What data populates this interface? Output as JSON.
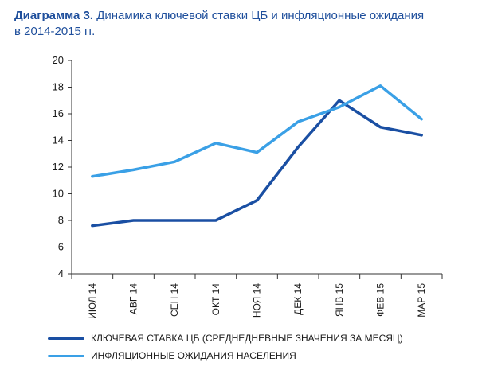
{
  "title": {
    "prefix": "Диаграмма 3.",
    "line1": " Динамика ключевой ставки ЦБ и инфляционные ожидания",
    "line2": "в 2014-2015 гг."
  },
  "chart_data": {
    "type": "line",
    "categories": [
      "ИЮЛ 14",
      "АВГ 14",
      "СЕН 14",
      "ОКТ 14",
      "НОЯ 14",
      "ДЕК 14",
      "ЯНВ 15",
      "ФЕВ 15",
      "МАР 15"
    ],
    "ylim": [
      4,
      20
    ],
    "yticks": [
      4,
      6,
      8,
      10,
      12,
      14,
      16,
      18,
      20
    ],
    "grid": false,
    "legend_position": "bottom",
    "series": [
      {
        "name": "КЛЮЧЕВАЯ СТАВКА ЦБ (СРЕДНЕДНЕВНЫЕ ЗНАЧЕНИЯ ЗА МЕСЯЦ)",
        "color": "#1a4fa3",
        "values": [
          7.6,
          8.0,
          8.0,
          8.0,
          9.5,
          13.5,
          17.0,
          15.0,
          14.4
        ]
      },
      {
        "name": "ИНФЛЯЦИОННЫЕ ОЖИДАНИЯ НАСЕЛЕНИЯ",
        "color": "#3aa0e6",
        "values": [
          11.3,
          11.8,
          12.4,
          13.8,
          13.1,
          15.4,
          16.5,
          18.1,
          15.6
        ]
      }
    ]
  }
}
